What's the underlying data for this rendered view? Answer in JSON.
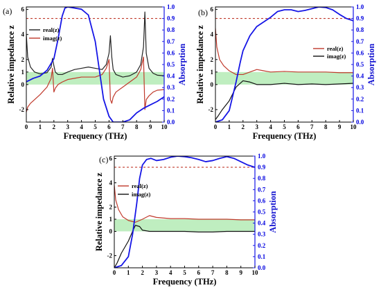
{
  "chart_data": [
    {
      "type": "line",
      "panel_label": "(a)",
      "xlabel": "Frequency (THz)",
      "ylabel": "Relative impedance z",
      "y2label": "Absorption",
      "xlim": [
        0,
        10
      ],
      "ylim": [
        -3,
        6.2
      ],
      "y2lim": [
        0,
        1.0
      ],
      "xticks": [
        "0",
        "1",
        "2",
        "3",
        "4",
        "5",
        "6",
        "7",
        "8",
        "9",
        "10"
      ],
      "yticks": [
        "-2",
        "0",
        "1",
        "2",
        "4",
        "6"
      ],
      "y2ticks": [
        "0.0",
        "0.1",
        "0.2",
        "0.3",
        "0.4",
        "0.5",
        "0.6",
        "0.7",
        "0.8",
        "0.9",
        "1.0"
      ],
      "reference_line": {
        "axis": "right",
        "value": 0.9,
        "color": "#c0392b",
        "style": "dashed"
      },
      "band": {
        "from": 0,
        "to": 1,
        "color": "#bfeec0"
      },
      "legend": {
        "position": "top-left"
      },
      "series": [
        {
          "name": "real(z)",
          "axis": "left",
          "color": "#222222",
          "x": [
            0,
            0.1,
            0.3,
            0.6,
            1.0,
            1.5,
            1.8,
            1.9,
            2.0,
            2.1,
            2.3,
            2.6,
            3.0,
            3.5,
            4.0,
            4.5,
            5.0,
            5.5,
            5.8,
            6.0,
            6.1,
            6.2,
            6.3,
            6.5,
            7.0,
            7.5,
            8.0,
            8.3,
            8.5,
            8.6,
            8.7,
            8.9,
            9.2,
            9.5,
            10.0
          ],
          "values": [
            4.0,
            2.2,
            1.4,
            1.0,
            0.85,
            0.95,
            1.4,
            2.1,
            1.5,
            1.0,
            0.8,
            0.8,
            1.0,
            1.2,
            1.3,
            1.4,
            1.3,
            1.2,
            1.6,
            2.5,
            3.9,
            2.2,
            1.2,
            0.8,
            0.6,
            0.7,
            1.0,
            1.6,
            3.0,
            5.8,
            2.5,
            1.3,
            0.9,
            0.75,
            0.7
          ]
        },
        {
          "name": "imag(z)",
          "axis": "left",
          "color": "#c0392b",
          "x": [
            0,
            0.1,
            0.3,
            0.6,
            1.0,
            1.5,
            1.8,
            1.9,
            2.0,
            2.1,
            2.3,
            2.6,
            3.0,
            3.5,
            4.0,
            4.5,
            5.0,
            5.5,
            5.8,
            6.0,
            6.1,
            6.2,
            6.3,
            6.5,
            7.0,
            7.5,
            8.0,
            8.3,
            8.5,
            8.6,
            8.7,
            8.9,
            9.2,
            9.5,
            10.0
          ],
          "values": [
            -2.2,
            -1.8,
            -1.5,
            -1.2,
            -0.8,
            -0.2,
            0.5,
            1.3,
            -0.6,
            -0.3,
            0.0,
            0.2,
            0.4,
            0.5,
            0.6,
            0.6,
            0.6,
            0.8,
            1.3,
            2.0,
            -1.2,
            -1.5,
            -1.0,
            -0.6,
            -0.2,
            0.2,
            0.6,
            1.2,
            2.2,
            -2.0,
            -1.2,
            -0.9,
            -0.6,
            -0.45,
            -0.4
          ]
        },
        {
          "name": "Absorption",
          "axis": "right",
          "color": "#1515e6",
          "x": [
            0,
            0.5,
            1.0,
            1.5,
            2.0,
            2.3,
            2.6,
            2.8,
            3.0,
            3.5,
            4.0,
            4.5,
            5.0,
            5.3,
            5.6,
            6.0,
            6.3,
            6.6,
            7.0,
            7.5,
            8.0,
            8.5,
            9.0,
            9.5,
            10.0
          ],
          "values": [
            0.35,
            0.38,
            0.4,
            0.45,
            0.55,
            0.72,
            0.92,
            0.99,
            1.0,
            0.99,
            0.98,
            0.93,
            0.7,
            0.45,
            0.2,
            0.05,
            0.0,
            0.0,
            0.0,
            0.02,
            0.08,
            0.12,
            0.15,
            0.18,
            0.22
          ]
        }
      ]
    },
    {
      "type": "line",
      "panel_label": "(b)",
      "xlabel": "Frequency (THz)",
      "ylabel": "Relative impedance z",
      "y2label": "Absorption",
      "xlim": [
        0,
        10
      ],
      "ylim": [
        -3,
        6.2
      ],
      "y2lim": [
        0,
        1.0
      ],
      "xticks": [
        "0",
        "1",
        "2",
        "3",
        "4",
        "5",
        "6",
        "7",
        "8",
        "9",
        "10"
      ],
      "yticks": [
        "-2",
        "0",
        "1",
        "2",
        "4",
        "6"
      ],
      "y2ticks": [
        "0.0",
        "0.1",
        "0.2",
        "0.3",
        "0.4",
        "0.5",
        "0.6",
        "0.7",
        "0.8",
        "0.9",
        "1.0"
      ],
      "reference_line": {
        "axis": "right",
        "value": 0.9,
        "color": "#c0392b",
        "style": "dashed"
      },
      "band": {
        "from": 0,
        "to": 1,
        "color": "#bfeec0"
      },
      "legend": {
        "position": "center-right"
      },
      "series": [
        {
          "name": "real(z)",
          "axis": "left",
          "color": "#c0392b",
          "x": [
            0,
            0.1,
            0.3,
            0.6,
            1.0,
            1.5,
            2.0,
            2.5,
            3.0,
            3.5,
            4.0,
            5.0,
            6.0,
            7.0,
            8.0,
            9.0,
            10.0
          ],
          "values": [
            4.5,
            3.0,
            2.0,
            1.5,
            1.1,
            0.8,
            0.8,
            1.0,
            1.2,
            1.1,
            1.0,
            1.05,
            1.0,
            1.0,
            1.0,
            0.95,
            0.95
          ]
        },
        {
          "name": "imag(z)",
          "axis": "left",
          "color": "#111111",
          "x": [
            0,
            0.2,
            0.5,
            1.0,
            1.5,
            2.0,
            2.5,
            3.0,
            4.0,
            5.0,
            6.0,
            7.0,
            8.0,
            9.0,
            10.0
          ],
          "values": [
            -2.8,
            -2.5,
            -2.0,
            -1.3,
            -0.2,
            0.3,
            0.2,
            0.0,
            0.0,
            0.1,
            0.0,
            0.05,
            0.0,
            0.05,
            0.1
          ]
        },
        {
          "name": "Absorption",
          "axis": "right",
          "color": "#1515e6",
          "x": [
            0,
            0.5,
            1.0,
            1.5,
            1.8,
            2.0,
            2.5,
            3.0,
            3.5,
            4.0,
            4.5,
            5.0,
            5.5,
            6.0,
            6.5,
            7.0,
            7.5,
            8.0,
            8.5,
            9.0,
            9.5,
            10.0
          ],
          "values": [
            0.0,
            0.02,
            0.1,
            0.35,
            0.52,
            0.62,
            0.75,
            0.83,
            0.87,
            0.91,
            0.96,
            0.975,
            0.975,
            0.96,
            0.97,
            0.985,
            1.0,
            0.995,
            0.975,
            0.935,
            0.9,
            0.88
          ]
        }
      ]
    },
    {
      "type": "line",
      "panel_label": "(c)",
      "xlabel": "Frequency (THz)",
      "ylabel": "Relative impedance z",
      "y2label": "Absorption",
      "xlim": [
        0,
        10
      ],
      "ylim": [
        -3,
        6.2
      ],
      "y2lim": [
        0,
        1.0
      ],
      "xticks": [
        "0",
        "1",
        "2",
        "3",
        "4",
        "5",
        "6",
        "7",
        "8",
        "9",
        "10"
      ],
      "yticks": [
        "-2",
        "0",
        "1",
        "2",
        "4",
        "6"
      ],
      "y2ticks": [
        "0.0",
        "0.1",
        "0.2",
        "0.3",
        "0.4",
        "0.5",
        "0.6",
        "0.7",
        "0.8",
        "0.9",
        "1.0"
      ],
      "reference_line": {
        "axis": "right",
        "value": 0.9,
        "color": "#c0392b",
        "style": "dashed"
      },
      "band": {
        "from": 0,
        "to": 1,
        "color": "#bfeec0"
      },
      "legend": {
        "position": "top-left"
      },
      "series": [
        {
          "name": "real(z)",
          "axis": "left",
          "color": "#c0392b",
          "x": [
            0,
            0.1,
            0.3,
            0.6,
            1.0,
            1.5,
            2.0,
            2.5,
            3.0,
            4.0,
            5.0,
            6.0,
            7.0,
            8.0,
            9.0,
            10.0
          ],
          "values": [
            3.8,
            2.6,
            1.8,
            1.2,
            0.9,
            0.75,
            1.0,
            1.3,
            1.15,
            1.05,
            1.05,
            1.0,
            1.0,
            1.0,
            0.95,
            0.95
          ]
        },
        {
          "name": "imag(z)",
          "axis": "left",
          "color": "#111111",
          "x": [
            0,
            0.2,
            0.5,
            0.8,
            1.0,
            1.3,
            1.5,
            1.8,
            2.0,
            2.5,
            3.0,
            4.0,
            5.0,
            6.0,
            7.0,
            8.0,
            9.0,
            10.0
          ],
          "values": [
            -3.0,
            -2.6,
            -1.8,
            -1.2,
            -0.8,
            0.0,
            0.5,
            0.4,
            0.1,
            0.0,
            0.0,
            0.0,
            0.0,
            -0.05,
            -0.05,
            0.0,
            0.0,
            0.0
          ]
        },
        {
          "name": "Absorption",
          "axis": "right",
          "color": "#1515e6",
          "x": [
            0,
            0.5,
            1.0,
            1.3,
            1.6,
            1.8,
            2.0,
            2.3,
            2.6,
            3.0,
            3.5,
            4.0,
            4.5,
            5.0,
            5.5,
            6.0,
            6.5,
            7.0,
            7.5,
            8.0,
            8.5,
            9.0,
            9.5,
            10.0
          ],
          "values": [
            0.0,
            0.02,
            0.1,
            0.3,
            0.58,
            0.8,
            0.92,
            0.97,
            0.98,
            0.96,
            0.97,
            0.99,
            1.0,
            0.995,
            0.985,
            0.97,
            0.95,
            0.96,
            0.98,
            0.995,
            0.98,
            0.95,
            0.92,
            0.9
          ]
        }
      ]
    }
  ]
}
